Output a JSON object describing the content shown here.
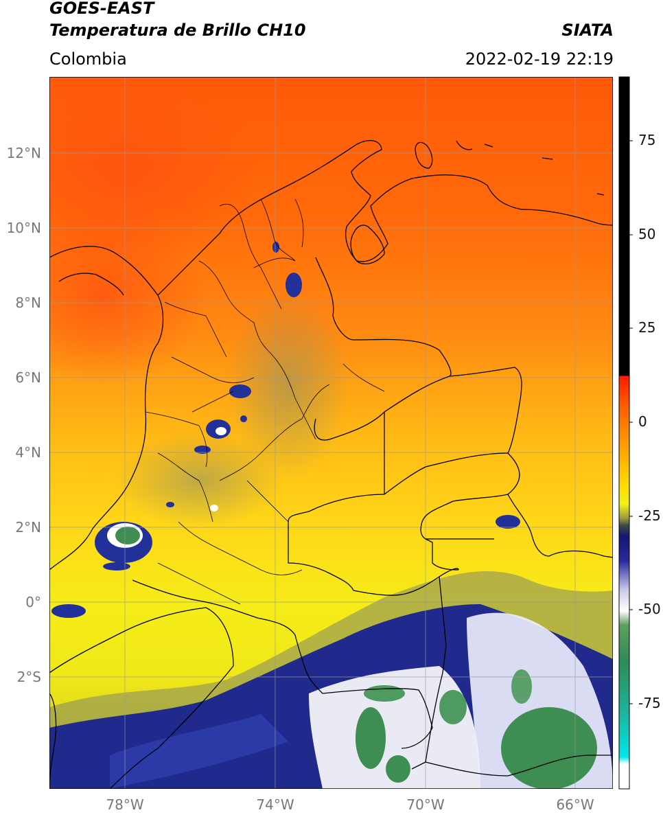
{
  "header": {
    "satellite": "GOES-EAST",
    "product": "Temperatura de Brillo CH10",
    "institution": "SIATA",
    "region": "Colombia",
    "datetime": "2022-02-19 22:19"
  },
  "map": {
    "lon_range": [
      -80,
      -65
    ],
    "lat_range": [
      -5,
      14
    ],
    "lat_labels": [
      "12°N",
      "10°N",
      "8°N",
      "6°N",
      "4°N",
      "2°N",
      "0°",
      "2°S"
    ],
    "lon_labels": [
      "78°W",
      "74°W",
      "70°W",
      "66°W"
    ]
  },
  "colorbar": {
    "labels": [
      "75",
      "50",
      "25",
      "0",
      "-25",
      "-50",
      "-75"
    ]
  }
}
